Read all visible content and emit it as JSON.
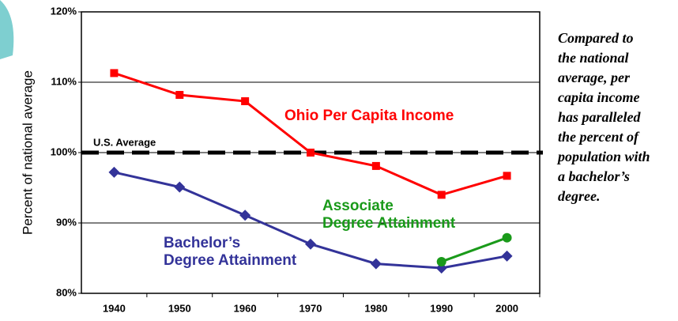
{
  "chart_data": {
    "type": "line",
    "y_axis_label": "Percent of national average",
    "categories": [
      "1940",
      "1950",
      "1960",
      "1970",
      "1980",
      "1990",
      "2000"
    ],
    "series": [
      {
        "name": "Ohio Per Capita Income",
        "color": "#ff0000",
        "marker": "square",
        "values": [
          111.3,
          108.2,
          107.3,
          100,
          98.1,
          94.0,
          96.7
        ]
      },
      {
        "name": "Bachelor’s\nDegree Attainment",
        "color": "#333399",
        "marker": "diamond",
        "values": [
          97.2,
          95.1,
          91.1,
          87.0,
          84.2,
          83.6,
          85.3
        ]
      },
      {
        "name": "Associate\nDegree Attainment",
        "color": "#1a9a1a",
        "marker": "circle",
        "values": [
          null,
          null,
          null,
          null,
          null,
          84.5,
          87.9
        ]
      }
    ],
    "reference_line": {
      "value": 100,
      "label": "U.S. Average"
    },
    "ylim": [
      80,
      120
    ],
    "yticks": [
      {
        "value": 80,
        "label": "80%"
      },
      {
        "value": 90,
        "label": "90%"
      },
      {
        "value": 100,
        "label": "100%"
      },
      {
        "value": 110,
        "label": "110%"
      },
      {
        "value": 120,
        "label": "120%"
      }
    ],
    "grid": true,
    "annotation": "Compared to\nthe national\naverage, per\ncapita income\nhas paralleled\nthe percent of\npopulation with\na bachelor’s\ndegree."
  }
}
